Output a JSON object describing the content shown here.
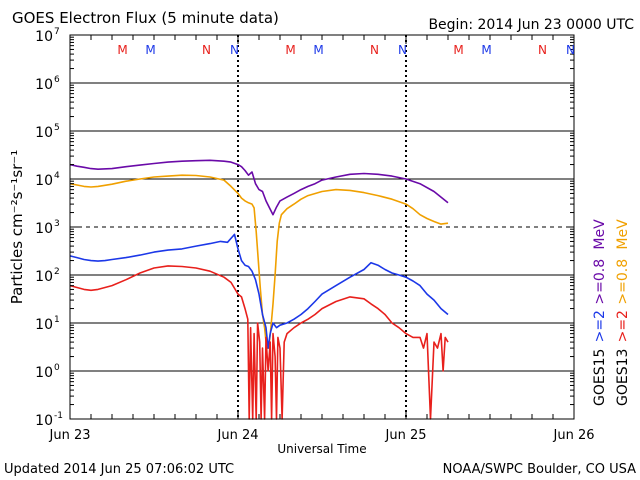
{
  "chart_data": {
    "type": "line",
    "title": "GOES Electron Flux (5 minute data)",
    "begin_label": "Begin: 2014 Jun 23 0000 UTC",
    "xlabel": "Universal Time",
    "ylabel": "Particles cm⁻²s⁻¹sr⁻¹",
    "y_scale": "log",
    "ylim_exp": [
      -1,
      7
    ],
    "ytick_base": "10",
    "ytick_exponents": [
      "-1",
      "0",
      "1",
      "2",
      "3",
      "4",
      "5",
      "6",
      "7"
    ],
    "dashed_gridline_exp": 3,
    "xlim_hours": [
      0,
      72
    ],
    "xtick_labels": [
      {
        "label": "Jun 23",
        "hour": 0
      },
      {
        "label": "Jun 24",
        "hour": 24
      },
      {
        "label": "Jun 25",
        "hour": 48
      },
      {
        "label": "Jun 26",
        "hour": 72
      }
    ],
    "day_boundary_hours": [
      24,
      48
    ],
    "local_time_markers": [
      {
        "label": "M",
        "hour": 7.5,
        "color": "#e8201c"
      },
      {
        "label": "M",
        "hour": 11.5,
        "color": "#1c38e8"
      },
      {
        "label": "N",
        "hour": 19.5,
        "color": "#e8201c"
      },
      {
        "label": "N",
        "hour": 23.5,
        "color": "#1c38e8"
      },
      {
        "label": "M",
        "hour": 31.5,
        "color": "#e8201c"
      },
      {
        "label": "M",
        "hour": 35.5,
        "color": "#1c38e8"
      },
      {
        "label": "N",
        "hour": 43.5,
        "color": "#e8201c"
      },
      {
        "label": "N",
        "hour": 47.5,
        "color": "#1c38e8"
      },
      {
        "label": "M",
        "hour": 55.5,
        "color": "#e8201c"
      },
      {
        "label": "M",
        "hour": 59.5,
        "color": "#1c38e8"
      },
      {
        "label": "N",
        "hour": 67.5,
        "color": "#e8201c"
      },
      {
        "label": "N",
        "hour": 71.5,
        "color": "#1c38e8"
      }
    ],
    "right_labels": [
      {
        "text": "GOES15",
        "color": "#000000",
        "col": 0
      },
      {
        "text": ">=2",
        "color": "#1c38e8",
        "col": 0
      },
      {
        "text": ">=0.8",
        "color": "#6a0aa8",
        "col": 0
      },
      {
        "text": "MeV",
        "color": "#6a0aa8",
        "col": 0
      },
      {
        "text": "GOES13",
        "color": "#000000",
        "col": 1
      },
      {
        "text": ">=2",
        "color": "#e8201c",
        "col": 1
      },
      {
        "text": ">=0.8",
        "color": "#f0a000",
        "col": 1
      },
      {
        "text": "MeV",
        "color": "#f0a000",
        "col": 1
      }
    ],
    "series": [
      {
        "name": "GOES15 >=0.8 MeV",
        "color": "#6a0aa8",
        "points": [
          [
            0,
            20000
          ],
          [
            1,
            18500
          ],
          [
            2,
            17500
          ],
          [
            3,
            16500
          ],
          [
            4,
            16000
          ],
          [
            6,
            16500
          ],
          [
            8,
            18000
          ],
          [
            10,
            19500
          ],
          [
            12,
            21000
          ],
          [
            14,
            22500
          ],
          [
            16,
            23500
          ],
          [
            18,
            24000
          ],
          [
            20,
            24500
          ],
          [
            22,
            23500
          ],
          [
            23,
            22500
          ],
          [
            24,
            20000
          ],
          [
            24.5,
            18000
          ],
          [
            25,
            15000
          ],
          [
            25.5,
            12000
          ],
          [
            26,
            14000
          ],
          [
            26.5,
            8000
          ],
          [
            27,
            6000
          ],
          [
            27.5,
            5500
          ],
          [
            28,
            3500
          ],
          [
            28.5,
            2500
          ],
          [
            29,
            1800
          ],
          [
            29.5,
            2600
          ],
          [
            30,
            3500
          ],
          [
            31,
            4200
          ],
          [
            32,
            5000
          ],
          [
            33,
            6000
          ],
          [
            34,
            7000
          ],
          [
            35,
            8000
          ],
          [
            36,
            9500
          ],
          [
            38,
            11000
          ],
          [
            40,
            12500
          ],
          [
            42,
            13000
          ],
          [
            44,
            12500
          ],
          [
            46,
            11500
          ],
          [
            48,
            10000
          ],
          [
            50,
            8000
          ],
          [
            52,
            5500
          ],
          [
            53,
            4200
          ],
          [
            54,
            3200
          ]
        ]
      },
      {
        "name": "GOES13 >=0.8 MeV",
        "color": "#f0a000",
        "points": [
          [
            0,
            8000
          ],
          [
            1,
            7500
          ],
          [
            2,
            7000
          ],
          [
            3,
            6800
          ],
          [
            4,
            7000
          ],
          [
            6,
            7800
          ],
          [
            8,
            9000
          ],
          [
            10,
            10000
          ],
          [
            12,
            11000
          ],
          [
            14,
            11500
          ],
          [
            16,
            12000
          ],
          [
            18,
            11800
          ],
          [
            20,
            11000
          ],
          [
            22,
            9500
          ],
          [
            23,
            7000
          ],
          [
            24,
            5000
          ],
          [
            24.5,
            4000
          ],
          [
            25,
            3500
          ],
          [
            25.5,
            3200
          ],
          [
            26,
            3000
          ],
          [
            26.3,
            2500
          ],
          [
            26.6,
            800
          ],
          [
            26.9,
            200
          ],
          [
            27.2,
            50
          ],
          [
            27.5,
            15
          ],
          [
            27.8,
            8
          ],
          [
            28.1,
            3
          ],
          [
            28.4,
            3
          ],
          [
            28.7,
            8
          ],
          [
            29,
            25
          ],
          [
            29.3,
            100
          ],
          [
            29.6,
            500
          ],
          [
            29.9,
            1200
          ],
          [
            30.2,
            1800
          ],
          [
            31,
            2400
          ],
          [
            32,
            3000
          ],
          [
            33,
            3800
          ],
          [
            34,
            4500
          ],
          [
            36,
            5500
          ],
          [
            38,
            6000
          ],
          [
            40,
            5800
          ],
          [
            42,
            5200
          ],
          [
            44,
            4500
          ],
          [
            46,
            3800
          ],
          [
            48,
            3000
          ],
          [
            49,
            2400
          ],
          [
            50,
            1800
          ],
          [
            51,
            1500
          ],
          [
            52,
            1300
          ],
          [
            53,
            1150
          ],
          [
            54,
            1200
          ]
        ]
      },
      {
        "name": "GOES15 >=2 MeV",
        "color": "#1c38e8",
        "points": [
          [
            0,
            250
          ],
          [
            1,
            230
          ],
          [
            2,
            210
          ],
          [
            3,
            200
          ],
          [
            4,
            195
          ],
          [
            5,
            200
          ],
          [
            6,
            210
          ],
          [
            8,
            230
          ],
          [
            10,
            260
          ],
          [
            12,
            300
          ],
          [
            14,
            330
          ],
          [
            16,
            350
          ],
          [
            18,
            400
          ],
          [
            20,
            450
          ],
          [
            21.5,
            500
          ],
          [
            22.5,
            480
          ],
          [
            23.5,
            700
          ],
          [
            24,
            350
          ],
          [
            24.5,
            200
          ],
          [
            25,
            160
          ],
          [
            25.5,
            150
          ],
          [
            26,
            120
          ],
          [
            26.5,
            80
          ],
          [
            27,
            40
          ],
          [
            27.5,
            15
          ],
          [
            28,
            8
          ],
          [
            28.3,
            3
          ],
          [
            28.6,
            6
          ],
          [
            29,
            10
          ],
          [
            29.5,
            8
          ],
          [
            30,
            9
          ],
          [
            31,
            10
          ],
          [
            32,
            12
          ],
          [
            33,
            15
          ],
          [
            34,
            20
          ],
          [
            35,
            28
          ],
          [
            36,
            40
          ],
          [
            38,
            60
          ],
          [
            40,
            90
          ],
          [
            42,
            130
          ],
          [
            43,
            180
          ],
          [
            44,
            160
          ],
          [
            45,
            130
          ],
          [
            46,
            110
          ],
          [
            47,
            100
          ],
          [
            48,
            90
          ],
          [
            49,
            75
          ],
          [
            50,
            60
          ],
          [
            51,
            40
          ],
          [
            52,
            30
          ],
          [
            53,
            20
          ],
          [
            54,
            15
          ]
        ]
      },
      {
        "name": "GOES13 >=2 MeV",
        "color": "#e8201c",
        "points": [
          [
            0,
            60
          ],
          [
            1,
            55
          ],
          [
            2,
            50
          ],
          [
            3,
            48
          ],
          [
            4,
            50
          ],
          [
            5,
            55
          ],
          [
            6,
            60
          ],
          [
            8,
            80
          ],
          [
            10,
            110
          ],
          [
            12,
            140
          ],
          [
            14,
            155
          ],
          [
            16,
            150
          ],
          [
            18,
            140
          ],
          [
            20,
            120
          ],
          [
            22,
            90
          ],
          [
            23,
            70
          ],
          [
            24,
            40
          ],
          [
            24.5,
            35
          ],
          [
            25,
            20
          ],
          [
            25.4,
            12
          ],
          [
            25.6,
            0.1
          ],
          [
            25.8,
            8
          ],
          [
            26.1,
            0.1
          ],
          [
            26.3,
            6
          ],
          [
            26.6,
            0.1
          ],
          [
            26.8,
            10
          ],
          [
            27.1,
            4
          ],
          [
            27.3,
            0.1
          ],
          [
            27.5,
            3
          ],
          [
            27.8,
            0.1
          ],
          [
            28,
            5
          ],
          [
            28.3,
            1
          ],
          [
            28.6,
            4
          ],
          [
            28.8,
            0.1
          ],
          [
            29,
            6
          ],
          [
            29.3,
            2
          ],
          [
            29.5,
            0.1
          ],
          [
            29.7,
            5
          ],
          [
            30,
            3
          ],
          [
            30.3,
            0.1
          ],
          [
            30.6,
            4
          ],
          [
            31,
            6
          ],
          [
            32,
            8
          ],
          [
            33,
            10
          ],
          [
            34,
            12
          ],
          [
            35,
            15
          ],
          [
            36,
            20
          ],
          [
            38,
            28
          ],
          [
            40,
            35
          ],
          [
            42,
            32
          ],
          [
            43,
            25
          ],
          [
            44,
            20
          ],
          [
            45,
            15
          ],
          [
            46,
            10
          ],
          [
            47,
            8
          ],
          [
            48,
            6
          ],
          [
            49,
            5
          ],
          [
            50,
            5
          ],
          [
            50.5,
            3
          ],
          [
            51,
            6
          ],
          [
            51.5,
            0.1
          ],
          [
            52,
            4
          ],
          [
            52.5,
            3
          ],
          [
            53,
            6
          ],
          [
            53.3,
            1
          ],
          [
            53.6,
            5
          ],
          [
            54,
            4
          ]
        ]
      }
    ]
  },
  "footer": {
    "updated": "Updated 2014 Jun 25 07:06:02 UTC",
    "source": "NOAA/SWPC Boulder, CO USA"
  }
}
